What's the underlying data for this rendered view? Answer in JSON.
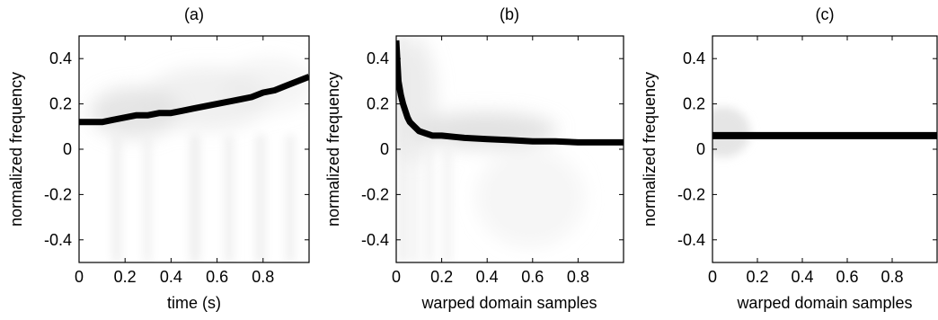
{
  "chart_data": [
    {
      "type": "heatmap",
      "title": "(a)",
      "xlabel": "time (s)",
      "ylabel": "normalized frequency",
      "xlim": [
        0,
        1
      ],
      "ylim": [
        -0.5,
        0.5
      ],
      "xticks": [
        "0",
        "0.2",
        "0.4",
        "0.6",
        "0.8"
      ],
      "xtick_values": [
        0,
        0.2,
        0.4,
        0.6,
        0.8
      ],
      "yticks": [
        "0.4",
        "0.2",
        "0",
        "-0.2",
        "-0.4"
      ],
      "ytick_values": [
        0.4,
        0.2,
        0,
        -0.2,
        -0.4
      ],
      "colormap": "gray-inverted",
      "ridge": {
        "x": [
          0.0,
          0.05,
          0.1,
          0.15,
          0.2,
          0.25,
          0.3,
          0.35,
          0.4,
          0.45,
          0.5,
          0.55,
          0.6,
          0.65,
          0.7,
          0.75,
          0.8,
          0.85,
          0.9,
          0.95,
          1.0
        ],
        "y": [
          0.12,
          0.12,
          0.12,
          0.13,
          0.14,
          0.15,
          0.15,
          0.16,
          0.16,
          0.17,
          0.18,
          0.19,
          0.2,
          0.21,
          0.22,
          0.23,
          0.25,
          0.26,
          0.28,
          0.3,
          0.32
        ]
      }
    },
    {
      "type": "heatmap",
      "title": "(b)",
      "xlabel": "warped domain samples",
      "ylabel": "normalized frequency",
      "xlim": [
        0,
        1
      ],
      "ylim": [
        -0.5,
        0.5
      ],
      "xticks": [
        "0",
        "0.2",
        "0.4",
        "0.6",
        "0.8"
      ],
      "xtick_values": [
        0,
        0.2,
        0.4,
        0.6,
        0.8
      ],
      "yticks": [
        "0.4",
        "0.2",
        "0",
        "-0.2",
        "-0.4"
      ],
      "ytick_values": [
        0.4,
        0.2,
        0,
        -0.2,
        -0.4
      ],
      "colormap": "gray-inverted",
      "ridge": {
        "x": [
          0.0,
          0.01,
          0.02,
          0.03,
          0.04,
          0.05,
          0.06,
          0.08,
          0.1,
          0.13,
          0.16,
          0.2,
          0.3,
          0.4,
          0.5,
          0.6,
          0.7,
          0.8,
          0.9,
          1.0
        ],
        "y": [
          0.48,
          0.3,
          0.24,
          0.2,
          0.17,
          0.14,
          0.12,
          0.1,
          0.08,
          0.07,
          0.06,
          0.06,
          0.05,
          0.045,
          0.04,
          0.035,
          0.035,
          0.03,
          0.03,
          0.03
        ]
      }
    },
    {
      "type": "heatmap",
      "title": "(c)",
      "xlabel": "warped domain samples",
      "ylabel": "normalized frequency",
      "xlim": [
        0,
        1
      ],
      "ylim": [
        -0.5,
        0.5
      ],
      "xticks": [
        "0",
        "0.2",
        "0.4",
        "0.6",
        "0.8"
      ],
      "xtick_values": [
        0,
        0.2,
        0.4,
        0.6,
        0.8
      ],
      "yticks": [
        "0.4",
        "0.2",
        "0",
        "-0.2",
        "-0.4"
      ],
      "ytick_values": [
        0.4,
        0.2,
        0,
        -0.2,
        -0.4
      ],
      "colormap": "gray-inverted",
      "ridge": {
        "x": [
          0.0,
          0.2,
          0.4,
          0.6,
          0.8,
          1.0
        ],
        "y": [
          0.06,
          0.06,
          0.06,
          0.06,
          0.06,
          0.06
        ]
      }
    }
  ]
}
